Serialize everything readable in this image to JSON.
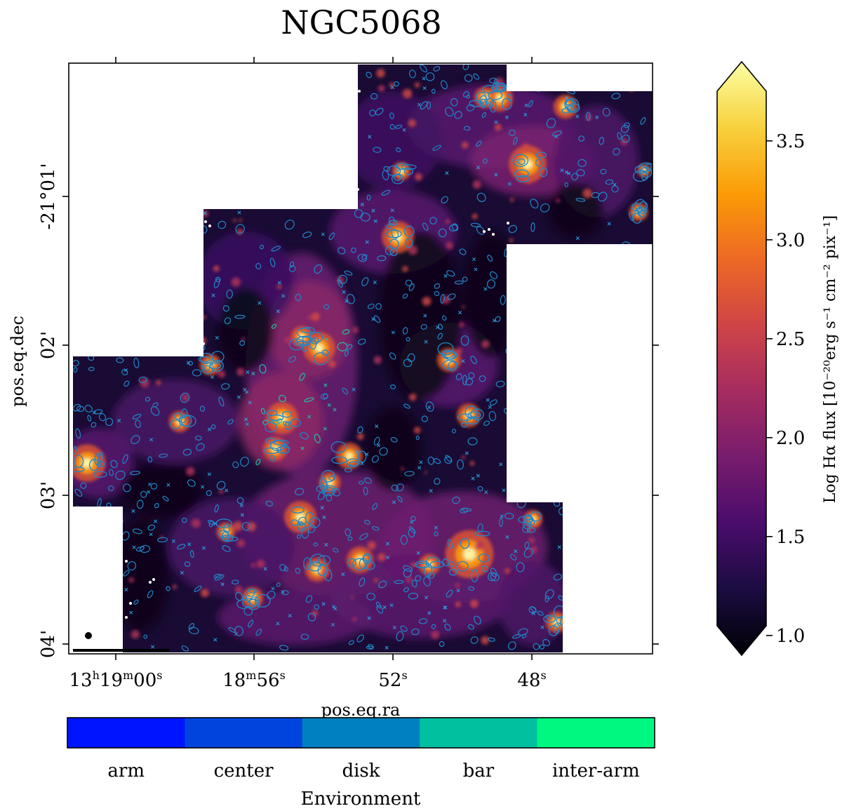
{
  "title": "NGC5068",
  "image": {
    "xlabel": "pos.eq.ra",
    "ylabel": "pos.eq.dec",
    "ra_tick_labels": [
      {
        "base": "13",
        "sup1": "h",
        "mid": "19",
        "sup2": "m",
        "end": "00",
        "sup3": "s"
      },
      {
        "base": "18",
        "sup1": "m",
        "mid": "56",
        "sup2": "s"
      },
      {
        "base": "52",
        "sup1": "s"
      },
      {
        "base": "48",
        "sup1": "s"
      }
    ],
    "dec_tick_labels": [
      "-21°01'",
      "02'",
      "03'",
      "04'"
    ]
  },
  "colorbar": {
    "label": "Log Hα flux [10⁻²⁰erg s⁻¹ cm⁻² pix⁻¹]",
    "ticks": [
      "1.0",
      "1.5",
      "2.0",
      "2.5",
      "3.0",
      "3.5"
    ],
    "tick_values": [
      1.0,
      1.5,
      2.0,
      2.5,
      3.0,
      3.5
    ],
    "range": [
      0.9,
      3.9
    ],
    "colors": [
      "#000004",
      "#1b0c41",
      "#4a0c6b",
      "#781c6d",
      "#a52c60",
      "#cf4446",
      "#ed6925",
      "#fb9b06",
      "#f7d13d",
      "#fcffa4"
    ]
  },
  "environment_bar": {
    "label": "Environment",
    "categories": [
      "arm",
      "center",
      "disk",
      "bar",
      "inter-arm"
    ],
    "colors": [
      "#0015ff",
      "#0044dd",
      "#0080c0",
      "#00c0a0",
      "#00f880"
    ]
  }
}
